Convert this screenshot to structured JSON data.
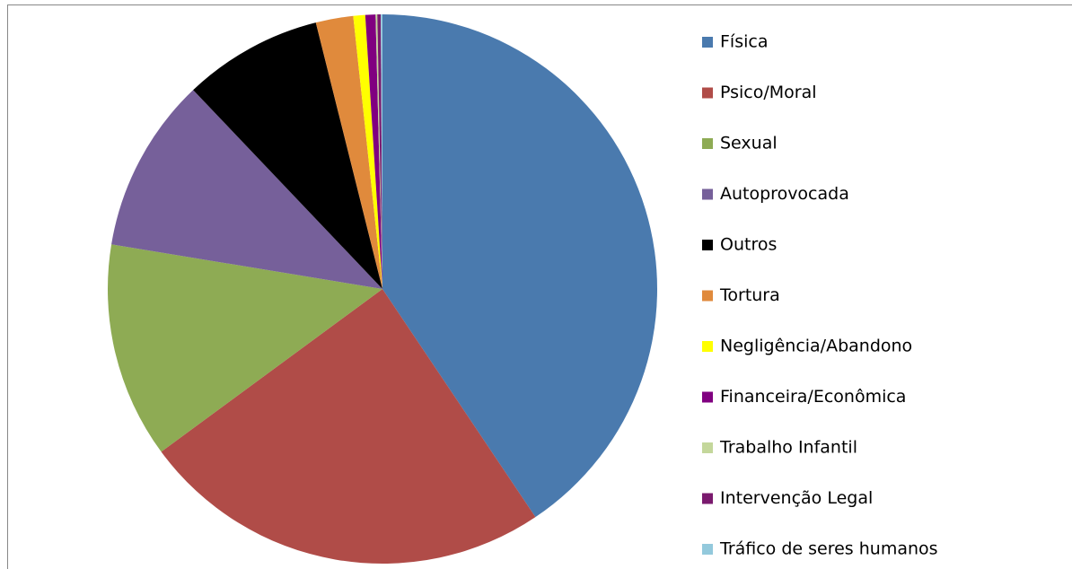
{
  "chart_data": {
    "type": "pie",
    "categories": [
      "Física",
      "Psico/Moral",
      "Sexual",
      "Autoprovocada",
      "Outros",
      "Tortura",
      "Negligência/Abandono",
      "Financeira/Econômica",
      "Trabalho Infantil",
      "Intervenção Legal",
      "Tráfico de seres humanos"
    ],
    "values": [
      40.6,
      24.3,
      12.7,
      10.3,
      8.2,
      2.2,
      0.7,
      0.6,
      0.1,
      0.2,
      0.1
    ],
    "colors": [
      "#4a7aae",
      "#b04c48",
      "#8eab54",
      "#76609a",
      "#000000",
      "#e08a3c",
      "#ffff00",
      "#800080",
      "#c4d79b",
      "#7a1a6e",
      "#93c9dc"
    ]
  }
}
